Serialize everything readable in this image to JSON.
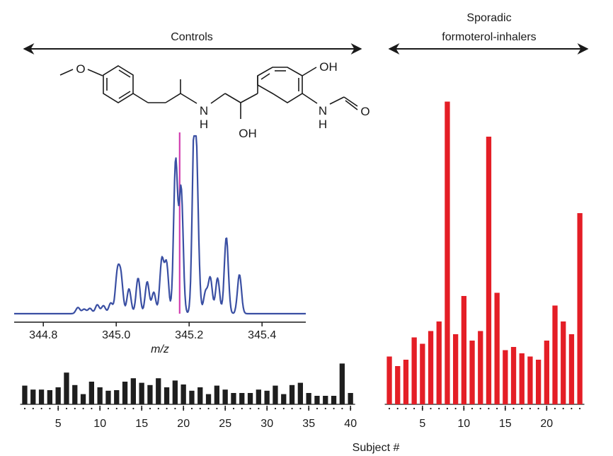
{
  "groups": {
    "controls_label": "Controls",
    "inhalers_label_line1": "Sporadic",
    "inhalers_label_line2": "formoterol-inhalers"
  },
  "structure": {
    "substituents": [
      "O",
      "OH",
      "N",
      "H",
      "OH",
      "N",
      "H",
      "O"
    ]
  },
  "spectrum": {
    "xlabel": "m/z",
    "xlim": [
      344.72,
      345.52
    ],
    "ylim": [
      0,
      1
    ],
    "xticks": [
      "344.8",
      "345.0",
      "345.2",
      "345.4"
    ],
    "marker_mz": 345.174,
    "color": "#3a4fa3",
    "marker_color": "#d13fb0",
    "peaks": [
      {
        "mz": 344.895,
        "h": 0.035
      },
      {
        "mz": 344.912,
        "h": 0.025
      },
      {
        "mz": 344.928,
        "h": 0.03
      },
      {
        "mz": 344.948,
        "h": 0.05
      },
      {
        "mz": 344.965,
        "h": 0.045
      },
      {
        "mz": 344.985,
        "h": 0.06
      },
      {
        "mz": 345.003,
        "h": 0.22
      },
      {
        "mz": 345.013,
        "h": 0.2
      },
      {
        "mz": 345.035,
        "h": 0.14
      },
      {
        "mz": 345.06,
        "h": 0.2
      },
      {
        "mz": 345.085,
        "h": 0.18
      },
      {
        "mz": 345.103,
        "h": 0.12
      },
      {
        "mz": 345.125,
        "h": 0.3
      },
      {
        "mz": 345.138,
        "h": 0.28
      },
      {
        "mz": 345.163,
        "h": 0.86
      },
      {
        "mz": 345.178,
        "h": 0.7
      },
      {
        "mz": 345.214,
        "h": 1.0
      },
      {
        "mz": 345.222,
        "h": 0.5
      },
      {
        "mz": 345.245,
        "h": 0.12
      },
      {
        "mz": 345.258,
        "h": 0.2
      },
      {
        "mz": 345.278,
        "h": 0.2
      },
      {
        "mz": 345.302,
        "h": 0.43
      },
      {
        "mz": 345.338,
        "h": 0.22
      }
    ]
  },
  "chart_data": [
    {
      "type": "bar",
      "title": "",
      "xlabel": "Subject #",
      "xticks": [
        "5",
        "10",
        "15",
        "20",
        "25",
        "30",
        "35",
        "40"
      ],
      "subjects": 40,
      "ylim": [
        0,
        1
      ],
      "color": "#1e1e1e",
      "categories": [
        1,
        2,
        3,
        4,
        5,
        6,
        7,
        8,
        9,
        10,
        11,
        12,
        13,
        14,
        15,
        16,
        17,
        18,
        19,
        20,
        21,
        22,
        23,
        24,
        25,
        26,
        27,
        28,
        29,
        30,
        31,
        32,
        33,
        34,
        35,
        36,
        37,
        38,
        39,
        40
      ],
      "values": [
        0.33,
        0.26,
        0.26,
        0.25,
        0.3,
        0.56,
        0.34,
        0.18,
        0.4,
        0.3,
        0.24,
        0.25,
        0.4,
        0.46,
        0.38,
        0.34,
        0.46,
        0.3,
        0.42,
        0.35,
        0.24,
        0.3,
        0.18,
        0.33,
        0.26,
        0.2,
        0.2,
        0.2,
        0.26,
        0.24,
        0.33,
        0.18,
        0.34,
        0.38,
        0.2,
        0.15,
        0.15,
        0.15,
        0.72,
        0.2
      ]
    },
    {
      "type": "bar",
      "title": "",
      "xlabel": "Subject #",
      "xticks": [
        "5",
        "10",
        "15",
        "20"
      ],
      "subjects": 24,
      "ylim": [
        0,
        1
      ],
      "color": "#e41e26",
      "categories": [
        1,
        2,
        3,
        4,
        5,
        6,
        7,
        8,
        9,
        10,
        11,
        12,
        13,
        14,
        15,
        16,
        17,
        18,
        19,
        20,
        21,
        22,
        23,
        24
      ],
      "values": [
        0.15,
        0.12,
        0.14,
        0.21,
        0.19,
        0.23,
        0.26,
        0.95,
        0.22,
        0.34,
        0.2,
        0.23,
        0.84,
        0.35,
        0.17,
        0.18,
        0.16,
        0.15,
        0.14,
        0.2,
        0.31,
        0.26,
        0.22,
        0.6
      ]
    }
  ]
}
